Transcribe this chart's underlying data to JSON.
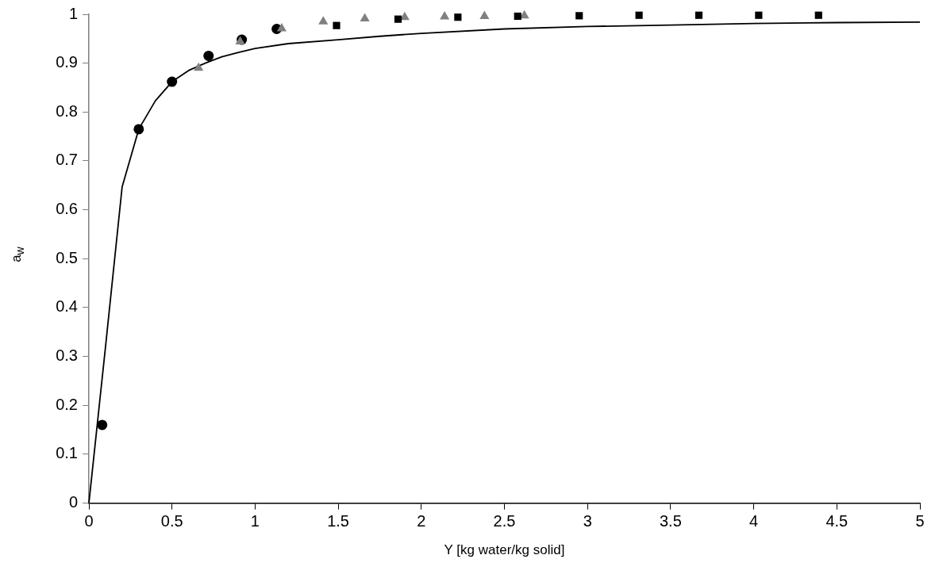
{
  "chart_data": {
    "type": "scatter",
    "xlabel": "Y [kg water/kg solid]",
    "ylabel": "a$_{w}$",
    "xlim": [
      0,
      5
    ],
    "xticks": [
      0,
      0.5,
      1,
      1.5,
      2,
      2.5,
      3,
      3.5,
      4,
      4.5,
      5
    ],
    "ylim": [
      0,
      1
    ],
    "yticks": [
      0,
      0.1,
      0.2,
      0.3,
      0.4,
      0.5,
      0.6,
      0.7,
      0.8,
      0.9,
      1
    ],
    "grid": false,
    "legend": false,
    "series": [
      {
        "marker": "circle",
        "color": "#000000",
        "x": [
          0.08,
          0.3,
          0.5,
          0.72,
          0.92,
          1.13
        ],
        "values": [
          0.16,
          0.765,
          0.862,
          0.915,
          0.948,
          0.97
        ]
      },
      {
        "marker": "triangle",
        "color": "#808080",
        "x": [
          0.66,
          0.91,
          1.16,
          1.41,
          1.66,
          1.9,
          2.14,
          2.38,
          2.62
        ],
        "values": [
          0.89,
          0.944,
          0.971,
          0.985,
          0.991,
          0.994,
          0.995,
          0.996,
          0.997
        ]
      },
      {
        "marker": "square",
        "color": "#000000",
        "x": [
          1.49,
          1.86,
          2.22,
          2.58,
          2.95,
          3.31,
          3.67,
          4.03,
          4.39
        ],
        "values": [
          0.977,
          0.99,
          0.994,
          0.996,
          0.997,
          0.998,
          0.998,
          0.998,
          0.998
        ]
      },
      {
        "type": "line",
        "marker": "none",
        "line_style": "solid",
        "color": "#000000",
        "x": [
          0,
          0.1,
          0.2,
          0.3,
          0.4,
          0.5,
          0.6,
          0.7,
          0.8,
          0.9,
          1,
          1.2,
          1.5,
          1.75,
          2,
          2.5,
          3,
          3.5,
          4,
          4.5,
          5
        ],
        "values": [
          0,
          0.32,
          0.647,
          0.765,
          0.823,
          0.862,
          0.885,
          0.9,
          0.913,
          0.922,
          0.93,
          0.94,
          0.948,
          0.955,
          0.961,
          0.97,
          0.975,
          0.978,
          0.981,
          0.983,
          0.984
        ]
      }
    ]
  }
}
